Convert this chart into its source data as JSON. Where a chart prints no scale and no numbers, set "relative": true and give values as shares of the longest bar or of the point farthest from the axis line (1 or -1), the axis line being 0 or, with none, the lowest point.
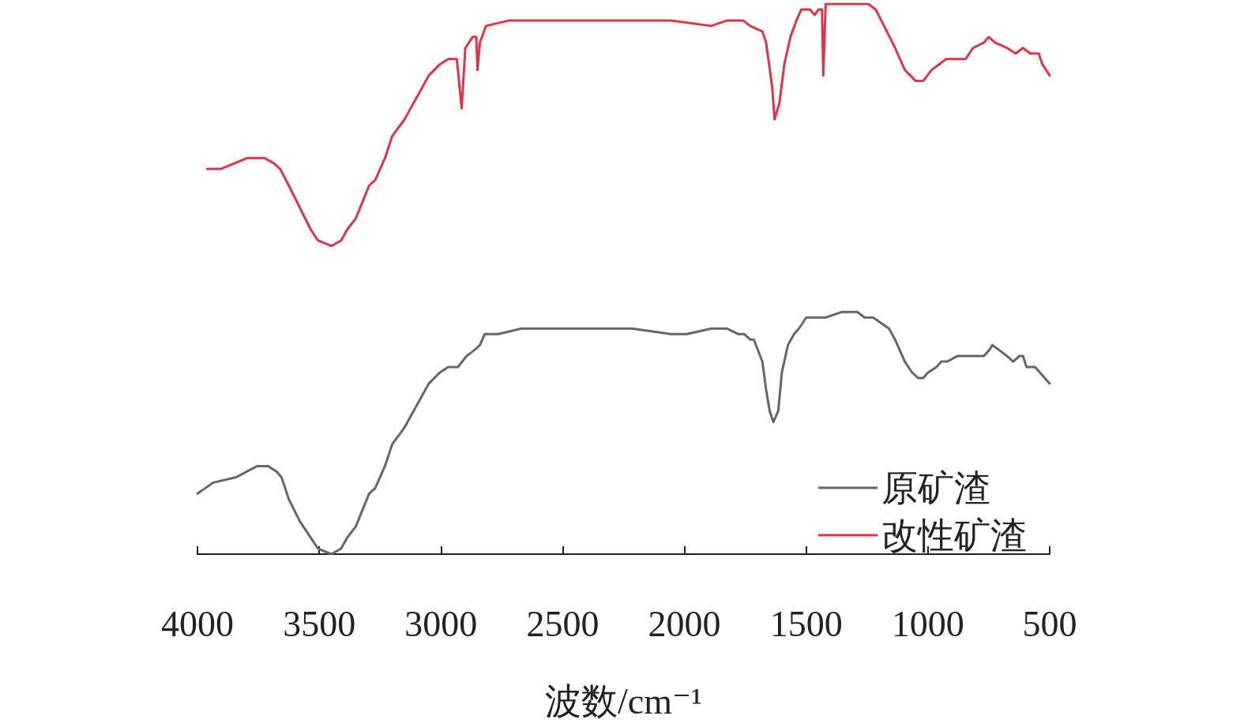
{
  "chart_data": {
    "type": "line",
    "relative": true,
    "xlabel": "波数/cm⁻¹",
    "xlim": [
      4000,
      500
    ],
    "xticks": [
      4000,
      3500,
      3000,
      2500,
      2000,
      1500,
      1000,
      500
    ],
    "grid": false,
    "legend": "bottom right",
    "series": [
      {
        "name": "原矿渣",
        "color": "#666666",
        "x": [
          4000,
          3935,
          3840,
          3755,
          3710,
          3675,
          3655,
          3625,
          3580,
          3535,
          3505,
          3450,
          3410,
          3385,
          3350,
          3295,
          3270,
          3230,
          3200,
          3150,
          3100,
          3050,
          3005,
          2970,
          2930,
          2895,
          2865,
          2840,
          2820,
          2765,
          2670,
          2380,
          2215,
          2055,
          1990,
          1890,
          1825,
          1780,
          1755,
          1730,
          1715,
          1680,
          1665,
          1650,
          1635,
          1615,
          1600,
          1575,
          1550,
          1530,
          1500,
          1470,
          1420,
          1355,
          1315,
          1290,
          1260,
          1225,
          1160,
          1135,
          1095,
          1065,
          1040,
          1020,
          1000,
          965,
          945,
          920,
          880,
          835,
          810,
          770,
          750,
          735,
          705,
          675,
          650,
          625,
          610,
          595,
          560,
          540,
          520,
          500
        ],
        "values": [
          0.11,
          0.13,
          0.14,
          0.16,
          0.16,
          0.15,
          0.14,
          0.1,
          0.06,
          0.03,
          0.01,
          0.0,
          0.01,
          0.03,
          0.05,
          0.11,
          0.12,
          0.16,
          0.2,
          0.23,
          0.27,
          0.31,
          0.33,
          0.34,
          0.34,
          0.36,
          0.37,
          0.38,
          0.4,
          0.4,
          0.41,
          0.41,
          0.41,
          0.4,
          0.4,
          0.41,
          0.41,
          0.4,
          0.4,
          0.39,
          0.39,
          0.35,
          0.3,
          0.26,
          0.24,
          0.26,
          0.33,
          0.38,
          0.4,
          0.41,
          0.43,
          0.43,
          0.43,
          0.44,
          0.44,
          0.44,
          0.43,
          0.43,
          0.41,
          0.39,
          0.35,
          0.33,
          0.32,
          0.32,
          0.33,
          0.34,
          0.35,
          0.35,
          0.36,
          0.36,
          0.36,
          0.36,
          0.37,
          0.38,
          0.37,
          0.36,
          0.35,
          0.36,
          0.36,
          0.34,
          0.34,
          0.33,
          0.32,
          0.31
        ]
      },
      {
        "name": "改性矿渣",
        "color": "#e0334a",
        "x": [
          3960,
          3905,
          3795,
          3725,
          3685,
          3660,
          3625,
          3580,
          3535,
          3505,
          3450,
          3410,
          3385,
          3350,
          3295,
          3270,
          3230,
          3200,
          3150,
          3100,
          3050,
          3005,
          2970,
          2935,
          2915,
          2900,
          2870,
          2855,
          2850,
          2840,
          2815,
          2720,
          2670,
          2380,
          2215,
          2055,
          1890,
          1825,
          1760,
          1730,
          1680,
          1665,
          1640,
          1630,
          1610,
          1590,
          1565,
          1540,
          1520,
          1485,
          1465,
          1450,
          1435,
          1430,
          1420,
          1370,
          1305,
          1245,
          1215,
          1180,
          1135,
          1095,
          1050,
          1020,
          985,
          925,
          870,
          845,
          815,
          770,
          750,
          725,
          675,
          640,
          610,
          580,
          545,
          530,
          500
        ],
        "values": [
          0.7,
          0.7,
          0.72,
          0.72,
          0.71,
          0.7,
          0.67,
          0.63,
          0.59,
          0.57,
          0.56,
          0.57,
          0.59,
          0.61,
          0.67,
          0.68,
          0.72,
          0.76,
          0.79,
          0.83,
          0.87,
          0.89,
          0.9,
          0.9,
          0.81,
          0.92,
          0.94,
          0.94,
          0.88,
          0.93,
          0.96,
          0.97,
          0.97,
          0.97,
          0.97,
          0.97,
          0.96,
          0.97,
          0.97,
          0.96,
          0.95,
          0.93,
          0.85,
          0.79,
          0.82,
          0.89,
          0.94,
          0.97,
          0.99,
          0.99,
          0.98,
          0.99,
          0.99,
          0.87,
          1.0,
          1.0,
          1.0,
          1.0,
          0.99,
          0.96,
          0.92,
          0.88,
          0.86,
          0.86,
          0.88,
          0.9,
          0.9,
          0.9,
          0.92,
          0.93,
          0.94,
          0.93,
          0.92,
          0.91,
          0.92,
          0.91,
          0.91,
          0.89,
          0.87
        ]
      }
    ]
  }
}
